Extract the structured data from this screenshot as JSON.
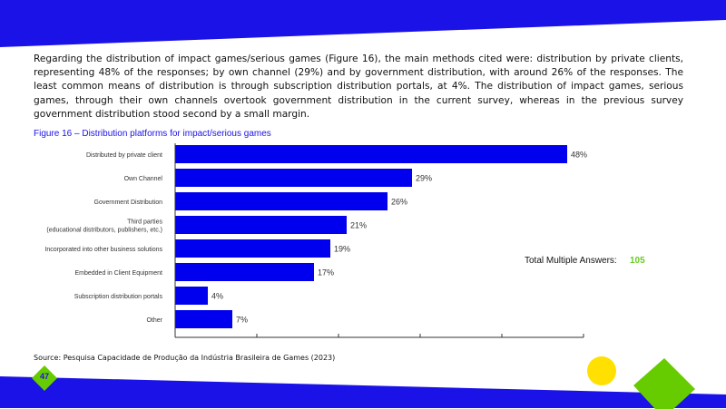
{
  "colors": {
    "brand_blue": "#1a12e6",
    "bar_blue": "#0000ee",
    "accent_green": "#66cc00",
    "accent_yellow": "#ffe000"
  },
  "paragraph": "Regarding the distribution of impact games/serious games (Figure 16), the main methods cited were: distribution by private clients, representing 48% of the responses; by own channel (29%) and by government distribution, with around 26% of the responses. The least common means of distribution is through subscription distribution portals, at 4%. The distribution of impact games, serious games, through their own channels overtook government distribution in the current survey, whereas in the previous survey government distribution stood second by a small margin.",
  "figure_caption": "Figure 16 – Distribution platforms for impact/serious games",
  "total": {
    "label": "Total Multiple Answers:",
    "value": "105"
  },
  "source": "Source: Pesquisa Capacidade de Produção da Indústria Brasileira de Games (2023)",
  "page_number": "47",
  "chart_data": {
    "type": "bar",
    "orientation": "horizontal",
    "categories": [
      [
        "Distributed by private client"
      ],
      [
        "Own Channel"
      ],
      [
        "Government Distribution"
      ],
      [
        "Third parties",
        "(educational distributors, publishers, etc.)"
      ],
      [
        "Incorporated into other business solutions"
      ],
      [
        "Embedded in Client Equipment"
      ],
      [
        "Subscription distribution portals"
      ],
      [
        "Other"
      ]
    ],
    "values": [
      48,
      29,
      26,
      21,
      19,
      17,
      4,
      7
    ],
    "value_labels": [
      "48%",
      "29%",
      "26%",
      "21%",
      "19%",
      "17%",
      "4%",
      "7%"
    ],
    "xlim": [
      0,
      50
    ],
    "x_ticks": [
      0,
      10,
      20,
      30,
      40,
      50
    ],
    "grid": false,
    "title": "",
    "xlabel": "",
    "ylabel": ""
  }
}
